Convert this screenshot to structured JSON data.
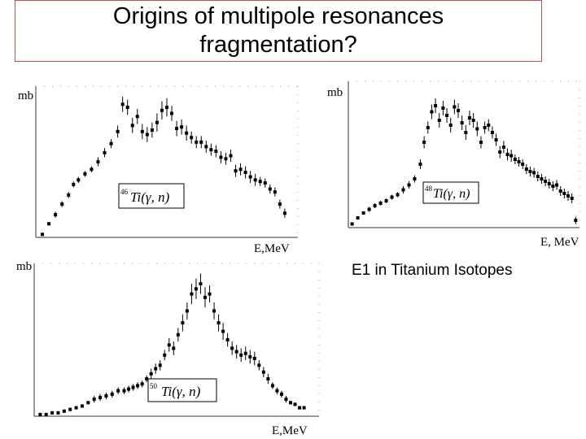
{
  "title": {
    "line1": "Origins of multipole resonances",
    "line2": "fragmentation?"
  },
  "caption": "E1 in Titanium Isotopes",
  "colors": {
    "title_border": "#c0504d",
    "ink": "#000000"
  },
  "chart_data": [
    {
      "type": "scatter",
      "title": "",
      "ylabel": "mb",
      "xlabel": "E,MeV",
      "reaction": {
        "mass": "46",
        "label": "Ti(γ, n)"
      },
      "x": [
        12.4,
        12.8,
        13.2,
        13.6,
        14.0,
        14.3,
        14.6,
        15.0,
        15.4,
        15.8,
        16.2,
        16.6,
        17.0,
        17.3,
        17.6,
        17.9,
        18.2,
        18.5,
        18.8,
        19.1,
        19.4,
        19.7,
        20.0,
        20.3,
        20.6,
        20.9,
        21.2,
        21.5,
        21.8,
        22.1,
        22.4,
        22.7,
        23.0,
        23.3,
        23.6,
        23.9,
        24.2,
        24.5,
        24.8,
        25.1,
        25.4,
        25.7,
        26.0,
        26.3,
        26.6,
        26.9,
        27.2
      ],
      "y": [
        2,
        9,
        15,
        22,
        28,
        35,
        38,
        42,
        45,
        50,
        56,
        62,
        70,
        88,
        86,
        74,
        80,
        70,
        68,
        71,
        76,
        84,
        86,
        82,
        72,
        73,
        69,
        66,
        63,
        63,
        60,
        58,
        57,
        53,
        52,
        54,
        44,
        45,
        43,
        40,
        38,
        37,
        36,
        32,
        30,
        22,
        16
      ],
      "yerr": [
        1,
        1,
        2,
        2,
        2,
        2,
        2,
        2,
        2,
        3,
        3,
        3,
        4,
        5,
        5,
        5,
        5,
        5,
        5,
        5,
        6,
        6,
        6,
        5,
        5,
        5,
        5,
        4,
        4,
        4,
        4,
        4,
        4,
        4,
        4,
        4,
        4,
        4,
        4,
        4,
        4,
        3,
        3,
        3,
        3,
        3,
        3
      ],
      "xlim": [
        12,
        28
      ],
      "ylim": [
        0,
        100
      ]
    },
    {
      "type": "scatter",
      "title": "",
      "ylabel": "mb",
      "xlabel": "E, MeV",
      "reaction": {
        "mass": "48",
        "label": "Ti(γ, n)"
      },
      "x": [
        14.2,
        14.5,
        14.8,
        15.1,
        15.4,
        15.7,
        16.0,
        16.3,
        16.6,
        16.9,
        17.2,
        17.5,
        17.8,
        18.0,
        18.2,
        18.4,
        18.6,
        18.8,
        19.0,
        19.2,
        19.4,
        19.6,
        19.8,
        20.0,
        20.2,
        20.4,
        20.6,
        20.8,
        21.0,
        21.2,
        21.4,
        21.6,
        21.8,
        22.0,
        22.2,
        22.4,
        22.6,
        22.8,
        23.0,
        23.2,
        23.4,
        23.6,
        23.8,
        24.0,
        24.2,
        24.4,
        24.6,
        24.8,
        25.0,
        25.2,
        25.4,
        25.6,
        25.8,
        26.0
      ],
      "y": [
        3,
        8,
        12,
        15,
        18,
        20,
        22,
        25,
        27,
        31,
        35,
        40,
        52,
        70,
        82,
        95,
        100,
        88,
        98,
        92,
        84,
        99,
        96,
        86,
        78,
        90,
        88,
        81,
        70,
        82,
        84,
        78,
        72,
        62,
        66,
        60,
        59,
        56,
        54,
        52,
        48,
        46,
        45,
        42,
        40,
        38,
        36,
        34,
        35,
        30,
        28,
        26,
        24,
        6
      ],
      "yerr": [
        1,
        1,
        1,
        2,
        2,
        2,
        2,
        2,
        2,
        3,
        3,
        3,
        4,
        5,
        5,
        6,
        6,
        6,
        6,
        6,
        6,
        6,
        6,
        6,
        6,
        6,
        6,
        6,
        5,
        5,
        5,
        5,
        5,
        5,
        5,
        5,
        5,
        4,
        4,
        4,
        4,
        4,
        4,
        4,
        4,
        4,
        4,
        4,
        4,
        4,
        4,
        4,
        4,
        3
      ],
      "xlim": [
        14,
        26.2
      ],
      "ylim": [
        0,
        120
      ]
    },
    {
      "type": "scatter",
      "title": "",
      "ylabel": "mb",
      "xlabel": "E,MeV",
      "reaction": {
        "mass": "50",
        "label": "Ti(γ, n)"
      },
      "x": [
        14.4,
        14.8,
        15.2,
        15.6,
        16.0,
        16.4,
        16.8,
        17.2,
        17.6,
        18.0,
        18.4,
        18.8,
        19.2,
        19.6,
        20.0,
        20.3,
        20.6,
        20.9,
        21.2,
        21.5,
        21.8,
        22.1,
        22.4,
        22.7,
        23.0,
        23.3,
        23.6,
        23.9,
        24.2,
        24.5,
        24.8,
        25.1,
        25.4,
        25.7,
        26.0,
        26.3,
        26.6,
        26.9,
        27.2,
        27.5,
        27.8,
        28.1,
        28.4,
        28.7,
        29.0,
        29.3,
        29.6,
        29.9,
        30.2,
        30.5,
        30.8,
        31.1,
        31.4,
        31.7,
        32.0
      ],
      "y": [
        1,
        1,
        2,
        2,
        3,
        4,
        5,
        6,
        8,
        10,
        11,
        12,
        13,
        15,
        15,
        16,
        17,
        18,
        19,
        22,
        25,
        28,
        30,
        36,
        42,
        40,
        48,
        55,
        62,
        72,
        75,
        78,
        70,
        72,
        62,
        55,
        50,
        45,
        40,
        38,
        36,
        37,
        35,
        34,
        30,
        26,
        22,
        18,
        15,
        13,
        10,
        8,
        7,
        5,
        5
      ],
      "yerr": [
        1,
        1,
        1,
        1,
        1,
        1,
        1,
        1,
        1,
        2,
        2,
        2,
        2,
        2,
        2,
        2,
        2,
        2,
        2,
        2,
        3,
        3,
        3,
        3,
        4,
        4,
        4,
        5,
        5,
        6,
        6,
        6,
        6,
        5,
        5,
        5,
        5,
        4,
        4,
        4,
        4,
        4,
        4,
        4,
        3,
        3,
        3,
        2,
        2,
        2,
        2,
        1,
        1,
        1,
        1
      ],
      "xlim": [
        14,
        33
      ],
      "ylim": [
        0,
        90
      ]
    }
  ]
}
